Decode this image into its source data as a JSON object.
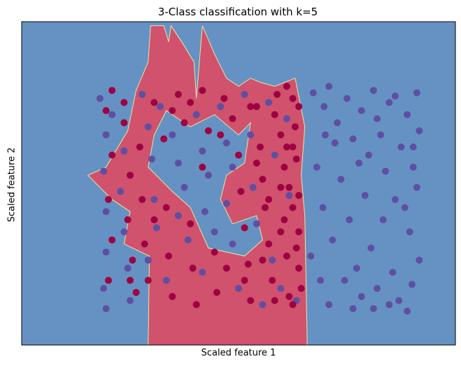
{
  "chart_data": {
    "type": "scatter",
    "title": "3-Class classification with k=5",
    "xlabel": "Scaled feature 1",
    "ylabel": "Scaled feature 2",
    "xlim": [
      -1.8,
      1.8
    ],
    "ylim": [
      -2.0,
      2.0
    ],
    "ticks_visible": false,
    "grid": false,
    "legend": "none",
    "colors": {
      "region_blue": "#6592c3",
      "region_red": "#d0526c",
      "boundary": "#e8e7a4",
      "point_blue": "#5e4fa2",
      "point_red": "#9e0142"
    },
    "decision_regions": [
      {
        "class": "red",
        "polygon": [
          [
            -0.75,
            -2.0
          ],
          [
            -0.74,
            -0.9
          ],
          [
            -0.95,
            -0.75
          ],
          [
            -0.9,
            -0.35
          ],
          [
            -1.05,
            -0.2
          ],
          [
            -1.25,
            0.1
          ],
          [
            -1.1,
            0.2
          ],
          [
            -0.92,
            0.65
          ],
          [
            -0.85,
            1.15
          ],
          [
            -0.75,
            1.5
          ],
          [
            -0.73,
            1.95
          ],
          [
            -0.62,
            1.95
          ],
          [
            -0.58,
            1.75
          ],
          [
            -0.56,
            1.95
          ],
          [
            -0.45,
            1.7
          ],
          [
            -0.37,
            1.5
          ],
          [
            -0.35,
            1.05
          ],
          [
            -0.3,
            1.95
          ],
          [
            -0.2,
            1.6
          ],
          [
            -0.1,
            1.3
          ],
          [
            0.0,
            1.2
          ],
          [
            0.1,
            1.3
          ],
          [
            0.18,
            1.25
          ],
          [
            0.3,
            1.2
          ],
          [
            0.47,
            1.3
          ],
          [
            0.55,
            0.7
          ],
          [
            0.52,
            0.1
          ],
          [
            0.55,
            -0.4
          ],
          [
            0.57,
            -2.0
          ]
        ]
      },
      {
        "class": "blue",
        "polygon": [
          [
            -0.6,
            0.9
          ],
          [
            -0.4,
            0.7
          ],
          [
            -0.2,
            0.85
          ],
          [
            0.0,
            0.6
          ],
          [
            0.1,
            0.75
          ],
          [
            0.05,
            0.25
          ],
          [
            -0.1,
            0.1
          ],
          [
            -0.15,
            -0.2
          ],
          [
            -0.05,
            -0.5
          ],
          [
            0.15,
            -0.4
          ],
          [
            0.2,
            -0.7
          ],
          [
            0.05,
            -0.9
          ],
          [
            -0.25,
            -0.8
          ],
          [
            -0.4,
            -0.3
          ],
          [
            -0.55,
            -0.1
          ],
          [
            -0.75,
            0.2
          ],
          [
            -0.7,
            0.6
          ]
        ]
      }
    ],
    "series": [
      {
        "name": "",
        "color": "#5e4fa2",
        "points": [
          [
            0.62,
            1.12
          ],
          [
            0.71,
            0.95
          ],
          [
            0.75,
            1.2
          ],
          [
            0.82,
            0.75
          ],
          [
            0.9,
            1.05
          ],
          [
            0.95,
            0.55
          ],
          [
            1.02,
            0.9
          ],
          [
            1.08,
            0.35
          ],
          [
            1.12,
            1.15
          ],
          [
            1.18,
            0.6
          ],
          [
            1.22,
            0.15
          ],
          [
            1.25,
            1.0
          ],
          [
            1.3,
            -0.2
          ],
          [
            1.35,
            0.45
          ],
          [
            1.4,
            0.85
          ],
          [
            1.42,
            -0.6
          ],
          [
            1.45,
            0.2
          ],
          [
            1.48,
            1.12
          ],
          [
            1.5,
            -0.95
          ],
          [
            1.5,
            0.65
          ],
          [
            0.65,
            0.2
          ],
          [
            0.7,
            -0.3
          ],
          [
            0.78,
            -0.7
          ],
          [
            0.85,
            0.05
          ],
          [
            0.92,
            -0.45
          ],
          [
            0.98,
            -1.05
          ],
          [
            1.05,
            -0.15
          ],
          [
            1.1,
            -0.8
          ],
          [
            1.15,
            -1.3
          ],
          [
            1.2,
            -0.45
          ],
          [
            1.28,
            -1.1
          ],
          [
            1.33,
            -1.45
          ],
          [
            1.38,
            -0.3
          ],
          [
            1.44,
            -1.25
          ],
          [
            1.48,
            -0.05
          ],
          [
            0.68,
            -1.2
          ],
          [
            0.75,
            -1.5
          ],
          [
            0.88,
            -1.2
          ],
          [
            0.95,
            -1.55
          ],
          [
            1.02,
            -1.4
          ],
          [
            1.12,
            -1.55
          ],
          [
            1.25,
            -1.5
          ],
          [
            1.4,
            -1.58
          ],
          [
            0.6,
            -0.9
          ],
          [
            0.8,
            0.5
          ],
          [
            1.0,
            0.25
          ],
          [
            1.15,
            0.8
          ],
          [
            1.3,
            1.08
          ],
          [
            1.45,
            0.45
          ],
          [
            0.72,
            0.6
          ],
          [
            -1.15,
            1.05
          ],
          [
            -1.1,
            0.6
          ],
          [
            -1.12,
            0.15
          ],
          [
            -1.1,
            -0.35
          ],
          [
            -1.1,
            -0.85
          ],
          [
            -1.12,
            -1.3
          ],
          [
            -1.1,
            -1.55
          ],
          [
            -1.05,
            0.85
          ],
          [
            -0.95,
            0.4
          ],
          [
            -0.98,
            -0.1
          ],
          [
            -0.95,
            -0.6
          ],
          [
            -0.92,
            -1.05
          ],
          [
            -0.9,
            -1.45
          ],
          [
            -0.8,
            1.1
          ],
          [
            -0.75,
            0.7
          ],
          [
            -0.72,
            0.3
          ],
          [
            -0.7,
            -0.2
          ],
          [
            -0.68,
            -0.55
          ],
          [
            -0.75,
            -0.95
          ],
          [
            -0.65,
            0.95
          ],
          [
            -0.55,
            0.6
          ],
          [
            -0.5,
            0.25
          ],
          [
            -0.45,
            -0.05
          ],
          [
            -0.5,
            -0.4
          ],
          [
            -0.42,
            -0.7
          ],
          [
            -0.35,
            0.85
          ],
          [
            -0.3,
            0.4
          ],
          [
            -0.25,
            0.1
          ],
          [
            -0.28,
            -0.35
          ],
          [
            -0.2,
            -0.6
          ],
          [
            -0.15,
            0.95
          ],
          [
            -0.1,
            0.5
          ],
          [
            -0.05,
            0.2
          ],
          [
            -0.1,
            -0.25
          ],
          [
            -0.05,
            -0.75
          ],
          [
            0.05,
            1.1
          ],
          [
            0.1,
            0.6
          ],
          [
            0.12,
            -0.05
          ],
          [
            0.15,
            -0.5
          ],
          [
            0.25,
            1.0
          ],
          [
            0.3,
            0.35
          ],
          [
            0.28,
            -0.95
          ],
          [
            0.35,
            -1.3
          ],
          [
            0.4,
            0.8
          ],
          [
            0.42,
            -0.15
          ],
          [
            0.48,
            -1.45
          ],
          [
            -0.6,
            -1.2
          ],
          [
            -0.3,
            -1.1
          ],
          [
            0.0,
            -1.3
          ],
          [
            0.2,
            -1.5
          ]
        ]
      },
      {
        "name": "",
        "color": "#9e0142",
        "points": [
          [
            -1.1,
            0.9
          ],
          [
            -1.05,
            0.35
          ],
          [
            -1.08,
            -0.2
          ],
          [
            -1.05,
            -0.7
          ],
          [
            -1.08,
            -1.2
          ],
          [
            -1.05,
            1.15
          ],
          [
            -0.95,
            0.75
          ],
          [
            -0.9,
            0.1
          ],
          [
            -0.92,
            -0.45
          ],
          [
            -0.88,
            -0.95
          ],
          [
            -0.85,
            -1.35
          ],
          [
            -0.82,
            0.45
          ],
          [
            -0.8,
            -0.2
          ],
          [
            -0.78,
            -0.75
          ],
          [
            -0.75,
            -1.2
          ],
          [
            -0.7,
            1.0
          ],
          [
            -0.62,
            0.55
          ],
          [
            -0.6,
            -0.3
          ],
          [
            -0.58,
            -0.9
          ],
          [
            -0.55,
            -1.4
          ],
          [
            -0.5,
            1.1
          ],
          [
            -0.45,
            0.75
          ],
          [
            -0.4,
            -0.5
          ],
          [
            -0.38,
            -1.05
          ],
          [
            -0.35,
            -1.5
          ],
          [
            -0.3,
            1.15
          ],
          [
            -0.25,
            0.65
          ],
          [
            -0.2,
            -0.85
          ],
          [
            -0.18,
            -1.35
          ],
          [
            -0.12,
            1.05
          ],
          [
            -0.05,
            0.8
          ],
          [
            0.0,
            0.35
          ],
          [
            0.02,
            -0.1
          ],
          [
            0.05,
            -0.55
          ],
          [
            0.08,
            -1.0
          ],
          [
            0.1,
            -1.45
          ],
          [
            0.15,
            0.95
          ],
          [
            0.18,
            0.45
          ],
          [
            0.2,
            0.05
          ],
          [
            0.22,
            -0.3
          ],
          [
            0.25,
            -0.75
          ],
          [
            0.28,
            -1.2
          ],
          [
            0.32,
            1.1
          ],
          [
            0.35,
            0.6
          ],
          [
            0.38,
            0.2
          ],
          [
            0.38,
            -0.45
          ],
          [
            0.4,
            -0.9
          ],
          [
            0.42,
            -1.4
          ],
          [
            0.45,
            1.05
          ],
          [
            0.47,
            0.7
          ],
          [
            0.48,
            0.3
          ],
          [
            0.5,
            -0.15
          ],
          [
            0.5,
            -0.6
          ],
          [
            0.5,
            -1.05
          ],
          [
            0.52,
            -1.3
          ],
          [
            0.45,
            0.45
          ],
          [
            0.42,
            -0.05
          ],
          [
            0.45,
            -0.3
          ],
          [
            0.48,
            -0.8
          ],
          [
            0.4,
            1.2
          ],
          [
            0.3,
            0.85
          ],
          [
            0.35,
            -0.6
          ],
          [
            0.25,
            -0.2
          ],
          [
            0.15,
            0.25
          ],
          [
            -0.15,
            0.6
          ],
          [
            -0.3,
            0.2
          ],
          [
            -0.55,
            0.9
          ],
          [
            -0.7,
            -0.45
          ],
          [
            -0.95,
            1.0
          ],
          [
            -0.9,
            -1.2
          ],
          [
            0.05,
            -1.2
          ],
          [
            -0.1,
            -1.05
          ],
          [
            0.3,
            -1.45
          ],
          [
            0.45,
            -1.5
          ],
          [
            0.5,
            0.95
          ],
          [
            0.1,
            0.95
          ],
          [
            -0.4,
            1.0
          ],
          [
            0.35,
            -0.05
          ],
          [
            0.2,
            -0.95
          ],
          [
            0.4,
            0.45
          ]
        ]
      }
    ]
  }
}
